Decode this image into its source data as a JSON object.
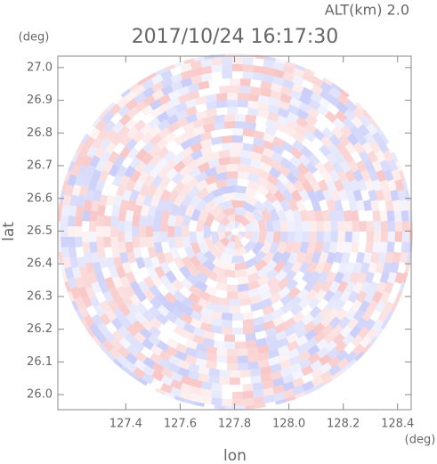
{
  "chart_data": {
    "type": "radar-image",
    "title": "2017/10/24 16:17:30",
    "subtitle": "ALT(km) 2.0",
    "x_label": "lon",
    "y_label": "lat",
    "x_unit": "(deg)",
    "y_unit": "(deg)",
    "xlim": [
      127.15,
      128.45
    ],
    "ylim": [
      25.954,
      27.035
    ],
    "xticks": [
      127.4,
      127.6,
      127.8,
      {
        "value": 128.0,
        "label": "128.0"
      },
      128.2,
      128.4
    ],
    "yticks": [
      {
        "value": 26.0,
        "label": "26.0"
      },
      26.1,
      26.2,
      26.3,
      26.4,
      26.5,
      26.6,
      26.7,
      26.8,
      26.9,
      {
        "value": 27.0,
        "label": "27.0"
      }
    ]
  }
}
